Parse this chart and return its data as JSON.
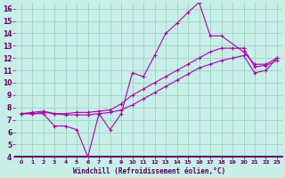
{
  "xlabel": "Windchill (Refroidissement éolien,°C)",
  "bg_color": "#c8eee8",
  "grid_color": "#a0d8cc",
  "line_color": "#aa00aa",
  "xlim": [
    -0.5,
    23.5
  ],
  "ylim": [
    4,
    16.5
  ],
  "xticks": [
    0,
    1,
    2,
    3,
    4,
    5,
    6,
    7,
    8,
    9,
    10,
    11,
    12,
    13,
    14,
    15,
    16,
    17,
    18,
    19,
    20,
    21,
    22,
    23
  ],
  "yticks": [
    4,
    5,
    6,
    7,
    8,
    9,
    10,
    11,
    12,
    13,
    14,
    15,
    16
  ],
  "series": [
    {
      "x": [
        0,
        1,
        2,
        3,
        4,
        5,
        6,
        7,
        8,
        9,
        10,
        11,
        12,
        13,
        14,
        15,
        16,
        17,
        18,
        20,
        21,
        22,
        23
      ],
      "y": [
        7.5,
        7.5,
        7.5,
        6.5,
        6.5,
        6.2,
        4.0,
        7.5,
        6.2,
        7.5,
        10.8,
        10.5,
        12.2,
        14.0,
        14.8,
        15.7,
        16.5,
        13.8,
        13.8,
        12.5,
        11.5,
        11.5,
        12.0
      ]
    },
    {
      "x": [
        0,
        1,
        2,
        3,
        4,
        5,
        6,
        7,
        8,
        9,
        10,
        11,
        12,
        13,
        14,
        15,
        16,
        17,
        18,
        19,
        20,
        21,
        22,
        23
      ],
      "y": [
        7.5,
        7.6,
        7.7,
        7.5,
        7.5,
        7.6,
        7.6,
        7.7,
        7.8,
        8.3,
        9.0,
        9.5,
        10.0,
        10.5,
        11.0,
        11.5,
        12.0,
        12.5,
        12.8,
        12.8,
        12.8,
        11.3,
        11.4,
        11.8
      ]
    },
    {
      "x": [
        0,
        1,
        2,
        3,
        4,
        5,
        6,
        7,
        8,
        9,
        10,
        11,
        12,
        13,
        14,
        15,
        16,
        17,
        18,
        19,
        20,
        21,
        22,
        23
      ],
      "y": [
        7.5,
        7.5,
        7.6,
        7.5,
        7.4,
        7.4,
        7.4,
        7.5,
        7.6,
        7.8,
        8.2,
        8.7,
        9.2,
        9.7,
        10.2,
        10.7,
        11.2,
        11.5,
        11.8,
        12.0,
        12.2,
        10.8,
        11.0,
        12.0
      ]
    }
  ]
}
